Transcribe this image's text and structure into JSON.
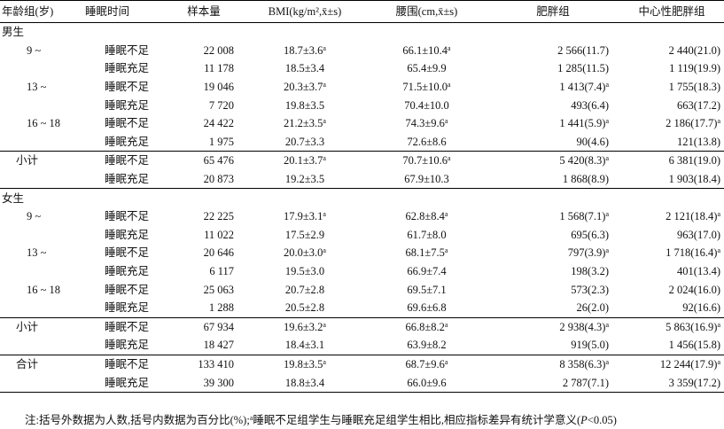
{
  "headers": {
    "age": "年龄组(岁)",
    "sleep": "睡眠时间",
    "n": "样本量",
    "bmi": "BMI(kg/m²,x̄±s)",
    "waist": "腰围(cm,x̄±s)",
    "obese": "肥胖组",
    "central": "中心性肥胖组"
  },
  "sections": {
    "male": "男生",
    "female": "女生"
  },
  "rows": {
    "m1": {
      "age": "9 ~",
      "sleep": "睡眠不足",
      "n": "22 008",
      "bmi": "18.7±3.6",
      "bmi_sup": "a",
      "waist": "66.1±10.4",
      "waist_sup": "a",
      "obese": "2 566(11.7)",
      "obese_sup": "",
      "central": "2 440(21.0)",
      "central_sup": ""
    },
    "m2": {
      "age": "",
      "sleep": "睡眠充足",
      "n": "11 178",
      "bmi": "18.5±3.4",
      "bmi_sup": "",
      "waist": "65.4±9.9",
      "waist_sup": "",
      "obese": "1 285(11.5)",
      "obese_sup": "",
      "central": "1 119(19.9)",
      "central_sup": ""
    },
    "m3": {
      "age": "13 ~",
      "sleep": "睡眠不足",
      "n": "19 046",
      "bmi": "20.3±3.7",
      "bmi_sup": "a",
      "waist": "71.5±10.0",
      "waist_sup": "a",
      "obese": "1 413(7.4)",
      "obese_sup": "a",
      "central": "1 755(18.3)",
      "central_sup": ""
    },
    "m4": {
      "age": "",
      "sleep": "睡眠充足",
      "n": "7 720",
      "bmi": "19.8±3.5",
      "bmi_sup": "",
      "waist": "70.4±10.0",
      "waist_sup": "",
      "obese": "493(6.4)",
      "obese_sup": "",
      "central": "663(17.2)",
      "central_sup": ""
    },
    "m5": {
      "age": "16 ~ 18",
      "sleep": "睡眠不足",
      "n": "24 422",
      "bmi": "21.2±3.5",
      "bmi_sup": "a",
      "waist": "74.3±9.6",
      "waist_sup": "a",
      "obese": "1 441(5.9)",
      "obese_sup": "a",
      "central": "2 186(17.7)",
      "central_sup": "a"
    },
    "m6": {
      "age": "",
      "sleep": "睡眠充足",
      "n": "1 975",
      "bmi": "20.7±3.3",
      "bmi_sup": "",
      "waist": "72.6±8.6",
      "waist_sup": "",
      "obese": "90(4.6)",
      "obese_sup": "",
      "central": "121(13.8)",
      "central_sup": ""
    },
    "m7": {
      "age": "小计",
      "sleep": "睡眠不足",
      "n": "65 476",
      "bmi": "20.1±3.7",
      "bmi_sup": "a",
      "waist": "70.7±10.6",
      "waist_sup": "a",
      "obese": "5 420(8.3)",
      "obese_sup": "a",
      "central": "6 381(19.0)",
      "central_sup": ""
    },
    "m8": {
      "age": "",
      "sleep": "睡眠充足",
      "n": "20 873",
      "bmi": "19.2±3.5",
      "bmi_sup": "",
      "waist": "67.9±10.3",
      "waist_sup": "",
      "obese": "1 868(8.9)",
      "obese_sup": "",
      "central": "1 903(18.4)",
      "central_sup": ""
    },
    "f1": {
      "age": "9 ~",
      "sleep": "睡眠不足",
      "n": "22 225",
      "bmi": "17.9±3.1",
      "bmi_sup": "a",
      "waist": "62.8±8.4",
      "waist_sup": "a",
      "obese": "1 568(7.1)",
      "obese_sup": "a",
      "central": "2 121(18.4)",
      "central_sup": "a"
    },
    "f2": {
      "age": "",
      "sleep": "睡眠充足",
      "n": "11 022",
      "bmi": "17.5±2.9",
      "bmi_sup": "",
      "waist": "61.7±8.0",
      "waist_sup": "",
      "obese": "695(6.3)",
      "obese_sup": "",
      "central": "963(17.0)",
      "central_sup": ""
    },
    "f3": {
      "age": "13 ~",
      "sleep": "睡眠不足",
      "n": "20 646",
      "bmi": "20.0±3.0",
      "bmi_sup": "a",
      "waist": "68.1±7.5",
      "waist_sup": "a",
      "obese": "797(3.9)",
      "obese_sup": "a",
      "central": "1 718(16.4)",
      "central_sup": "a"
    },
    "f4": {
      "age": "",
      "sleep": "睡眠充足",
      "n": "6 117",
      "bmi": "19.5±3.0",
      "bmi_sup": "",
      "waist": "66.9±7.4",
      "waist_sup": "",
      "obese": "198(3.2)",
      "obese_sup": "",
      "central": "401(13.4)",
      "central_sup": ""
    },
    "f5": {
      "age": "16 ~ 18",
      "sleep": "睡眠不足",
      "n": "25 063",
      "bmi": "20.7±2.8",
      "bmi_sup": "",
      "waist": "69.5±7.1",
      "waist_sup": "",
      "obese": "573(2.3)",
      "obese_sup": "",
      "central": "2 024(16.0)",
      "central_sup": ""
    },
    "f6": {
      "age": "",
      "sleep": "睡眠充足",
      "n": "1 288",
      "bmi": "20.5±2.8",
      "bmi_sup": "",
      "waist": "69.6±6.8",
      "waist_sup": "",
      "obese": "26(2.0)",
      "obese_sup": "",
      "central": "92(16.6)",
      "central_sup": ""
    },
    "f7": {
      "age": "小计",
      "sleep": "睡眠不足",
      "n": "67 934",
      "bmi": "19.6±3.2",
      "bmi_sup": "a",
      "waist": "66.8±8.2",
      "waist_sup": "a",
      "obese": "2 938(4.3)",
      "obese_sup": "a",
      "central": "5 863(16.9)",
      "central_sup": "a"
    },
    "f8": {
      "age": "",
      "sleep": "睡眠充足",
      "n": "18 427",
      "bmi": "18.4±3.1",
      "bmi_sup": "",
      "waist": "63.9±8.2",
      "waist_sup": "",
      "obese": "919(5.0)",
      "obese_sup": "",
      "central": "1 456(15.8)",
      "central_sup": ""
    },
    "t1": {
      "age": "合计",
      "sleep": "睡眠不足",
      "n": "133 410",
      "bmi": "19.8±3.5",
      "bmi_sup": "a",
      "waist": "68.7±9.6",
      "waist_sup": "a",
      "obese": "8 358(6.3)",
      "obese_sup": "a",
      "central": "12 244(17.9)",
      "central_sup": "a"
    },
    "t2": {
      "age": "",
      "sleep": "睡眠充足",
      "n": "39 300",
      "bmi": "18.8±3.4",
      "bmi_sup": "",
      "waist": "66.0±9.6",
      "waist_sup": "",
      "obese": "2 787(7.1)",
      "obese_sup": "",
      "central": "3 359(17.2)",
      "central_sup": ""
    }
  },
  "note": {
    "text1": "注:括号外数据为人数,括号内数据为百分比(%);",
    "sup": "a",
    "text2": "睡眠不足组学生与睡眠充足组学生相比,相应指标差异有统计学意义(",
    "p": "P",
    "text3": "<0.05)"
  }
}
